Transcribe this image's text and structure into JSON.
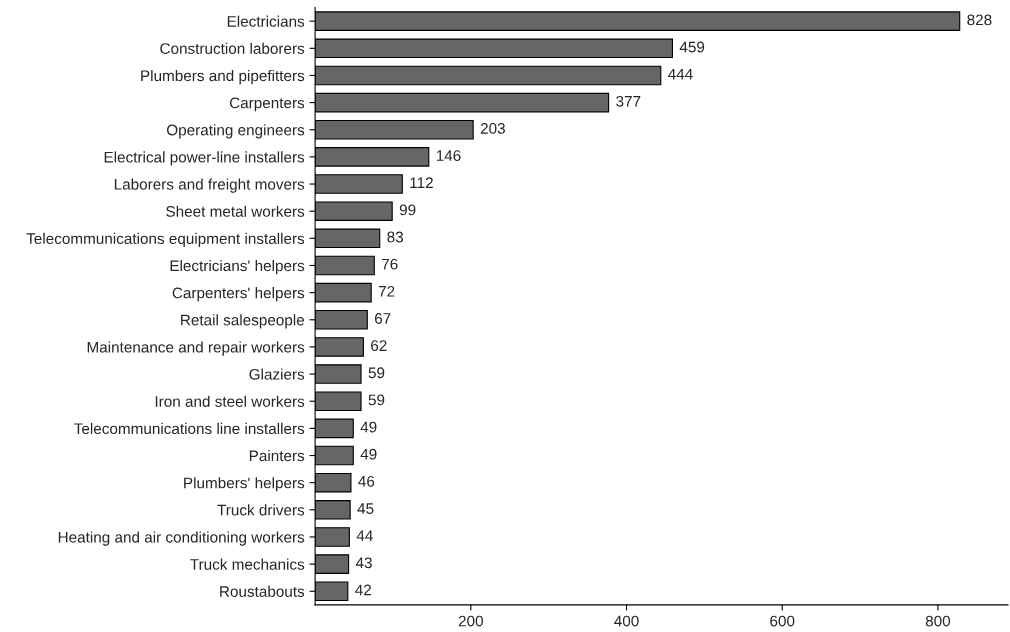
{
  "chart_data": {
    "type": "bar",
    "orientation": "horizontal",
    "categories": [
      "Electricians",
      "Construction laborers",
      "Plumbers and pipefitters",
      "Carpenters",
      "Operating engineers",
      "Electrical power-line installers",
      "Laborers and freight movers",
      "Sheet metal workers",
      "Telecommunications equipment installers",
      "Electricians' helpers",
      "Carpenters' helpers",
      "Retail salespeople",
      "Maintenance and repair workers",
      "Glaziers",
      "Iron and steel workers",
      "Telecommunications line installers",
      "Painters",
      "Plumbers' helpers",
      "Truck drivers",
      "Heating and air conditioning workers",
      "Truck mechanics",
      "Roustabouts"
    ],
    "values": [
      828,
      459,
      444,
      377,
      203,
      146,
      112,
      99,
      83,
      76,
      72,
      67,
      62,
      59,
      59,
      49,
      49,
      46,
      45,
      44,
      43,
      42
    ],
    "color": "#666666",
    "xlim": [
      0,
      890
    ],
    "xticks": [
      200,
      400,
      600,
      800
    ],
    "data_labels": true,
    "grid": false,
    "legend": false
  }
}
